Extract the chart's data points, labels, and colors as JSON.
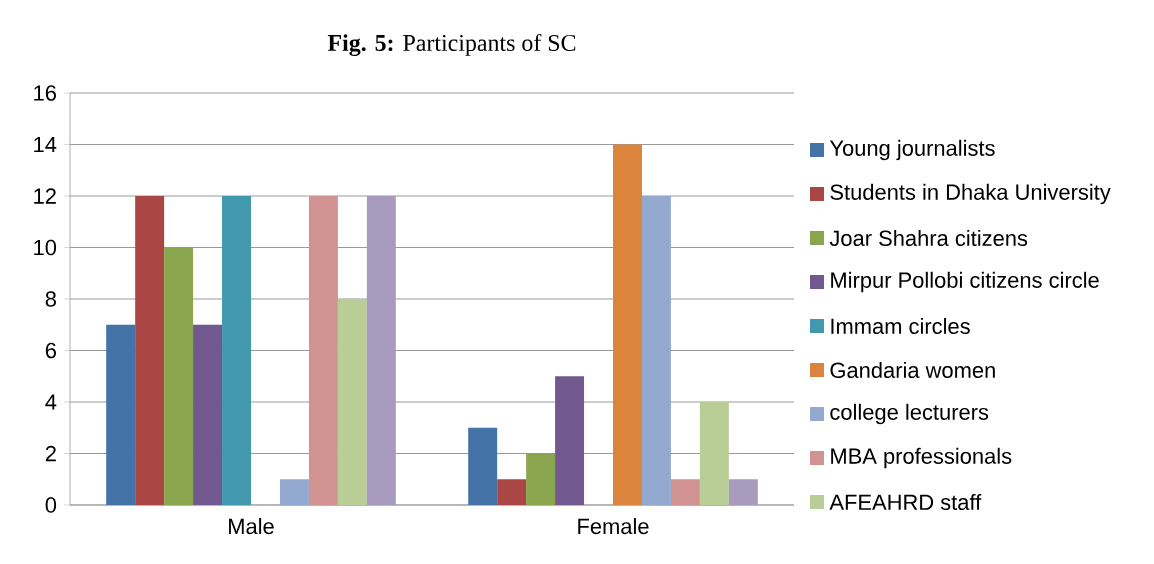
{
  "chart_data": {
    "type": "bar",
    "title": "**Fig. 5:** Participants of SC",
    "categories": [
      "Male",
      "Female"
    ],
    "series": [
      {
        "name": "Young journalists",
        "color": "#4572a7",
        "values": [
          7,
          3
        ]
      },
      {
        "name": "Students in Dhaka University",
        "color": "#aa4643",
        "values": [
          12,
          1
        ]
      },
      {
        "name": "Joar Shahra citizens",
        "color": "#89a54e",
        "values": [
          10,
          2
        ]
      },
      {
        "name": "Mirpur Pollobi citizens circle",
        "color": "#71588f",
        "values": [
          7,
          5
        ]
      },
      {
        "name": "Immam circles",
        "color": "#4198af",
        "values": [
          12,
          0
        ]
      },
      {
        "name": "Gandaria women",
        "color": "#db843d",
        "values": [
          0,
          14
        ]
      },
      {
        "name": "college lecturers",
        "color": "#93a9cf",
        "values": [
          1,
          12
        ]
      },
      {
        "name": "MBA professionals",
        "color": "#d19392",
        "values": [
          12,
          1
        ]
      },
      {
        "name": "AFEAHRD staff",
        "color": "#b9cd96",
        "values": [
          8,
          4
        ]
      },
      {
        "color": "#a99bbd",
        "values": [
          12,
          1
        ]
      }
    ],
    "ylim": [
      0,
      16
    ],
    "yticks": [
      0,
      2,
      4,
      6,
      8,
      10,
      12,
      14,
      16
    ],
    "grid": "y",
    "legend": "right"
  }
}
